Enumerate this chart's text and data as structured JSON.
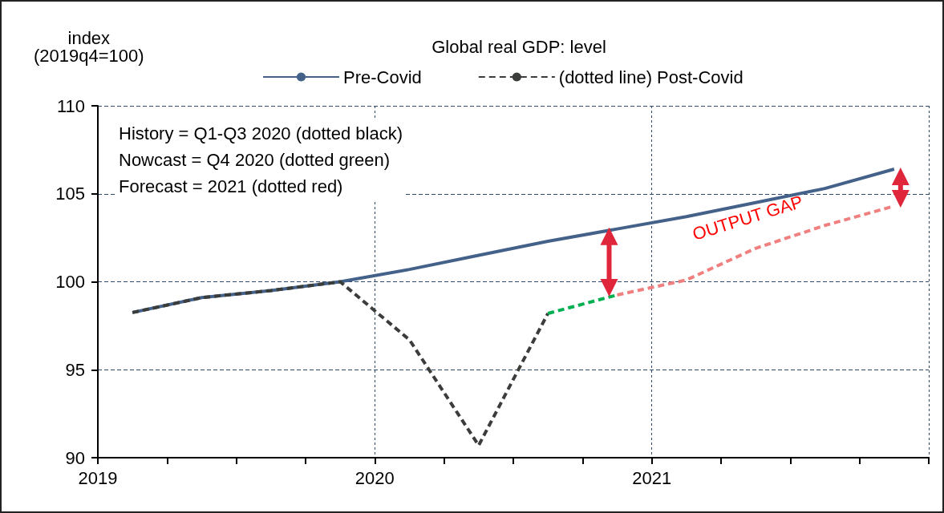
{
  "chart_data": {
    "type": "line",
    "title": "Global real GDP: level",
    "ylabel": "index\n(2019q4=100)",
    "xlim": [
      2019,
      2022
    ],
    "xticks": [
      {
        "value": 2019,
        "label": "2019"
      },
      {
        "value": 2019.25,
        "label": null
      },
      {
        "value": 2019.5,
        "label": null
      },
      {
        "value": 2019.75,
        "label": null
      },
      {
        "value": 2020,
        "label": "2020"
      },
      {
        "value": 2020.25,
        "label": null
      },
      {
        "value": 2020.5,
        "label": null
      },
      {
        "value": 2020.75,
        "label": null
      },
      {
        "value": 2021,
        "label": "2021"
      },
      {
        "value": 2021.25,
        "label": null
      },
      {
        "value": 2021.5,
        "label": null
      },
      {
        "value": 2021.75,
        "label": null
      },
      {
        "value": 2022,
        "label": null
      }
    ],
    "ylim": [
      90,
      110
    ],
    "yticks": [
      90,
      95,
      100,
      105,
      110
    ],
    "grid": true,
    "legend": "top",
    "marker": "none",
    "series": [
      {
        "name": "Pre-Covid",
        "color": "#44618a",
        "line_style": "solid",
        "x": [
          2019.125,
          2019.375,
          2019.625,
          2019.875,
          2020.125,
          2020.375,
          2020.625,
          2020.875,
          2021.125,
          2021.375,
          2021.625,
          2021.875
        ],
        "values": [
          98.25,
          99.1,
          99.5,
          100,
          100.7,
          101.5,
          102.3,
          103,
          103.7,
          104.5,
          105.3,
          106.4
        ]
      },
      {
        "name": "(dotted line) Post-Covid",
        "color": "#3a3d3a",
        "line_style": "dashed",
        "x": [
          2019.125,
          2019.375,
          2019.625,
          2019.875,
          2020.125,
          2020.375,
          2020.625
        ],
        "values": [
          98.25,
          99.1,
          99.5,
          100,
          96.7,
          90.7,
          98.2
        ]
      },
      {
        "color": "#00b050",
        "line_style": "dashed",
        "x": [
          2020.625,
          2020.875
        ],
        "values": [
          98.2,
          99.25
        ]
      },
      {
        "color": "#f08080",
        "line_style": "dashed",
        "x": [
          2020.875,
          2021.125,
          2021.375,
          2021.625,
          2021.875
        ],
        "values": [
          99.25,
          100.1,
          101.9,
          103.2,
          104.3
        ]
      }
    ],
    "annotations": [
      "History = Q1-Q3 2020 (dotted black)\nNowcast = Q4 2020 (dotted green)\nForecast = 2021 (dotted red)",
      "OUTPUT GAP"
    ]
  }
}
